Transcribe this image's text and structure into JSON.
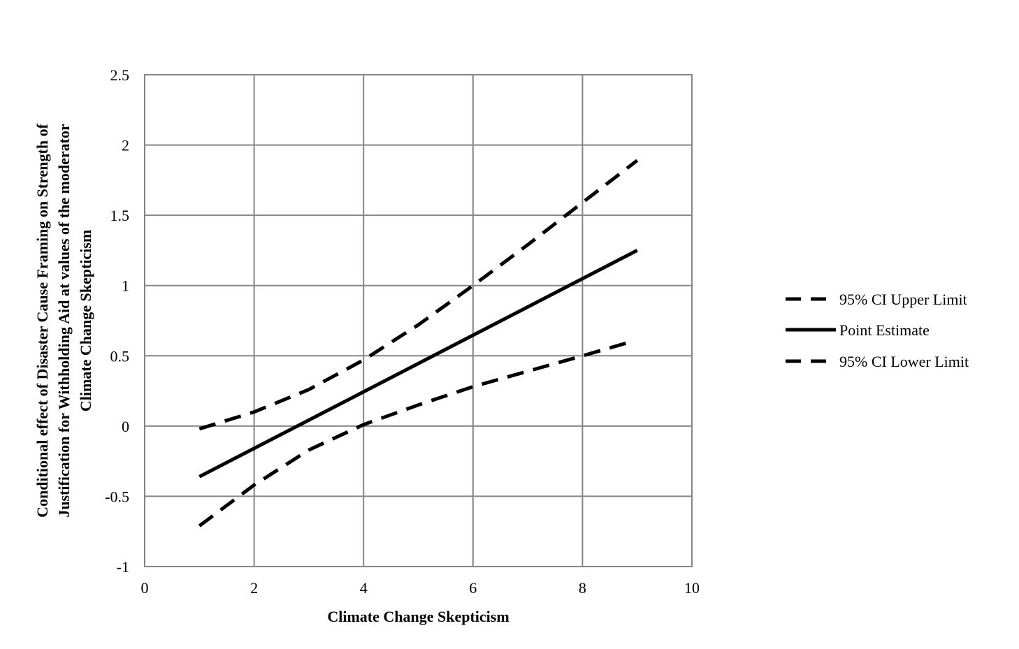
{
  "chart_data": {
    "type": "line",
    "title": "",
    "xlabel": "Climate Change Skepticism",
    "ylabel_lines": [
      "Conditional effect of Disaster Cause Framing on Strength of",
      "Justification for Withholding Aid at values of the moderator",
      "Climate Change Skepticism"
    ],
    "xlim": [
      0,
      10
    ],
    "ylim": [
      -1,
      2.5
    ],
    "x_ticks": [
      "0",
      "2",
      "4",
      "6",
      "8",
      "10"
    ],
    "y_ticks": [
      "-1",
      "-0.5",
      "0",
      "0.5",
      "1",
      "1.5",
      "2",
      "2.5"
    ],
    "grid": true,
    "legend_position": "right",
    "series": [
      {
        "name": "95% CI Upper Limit",
        "style": "dashed",
        "color": "#000000",
        "x": [
          1,
          2,
          3,
          4,
          5,
          6,
          7,
          8,
          9
        ],
        "y": [
          -0.02,
          0.1,
          0.26,
          0.47,
          0.72,
          1.0,
          1.29,
          1.59,
          1.89
        ]
      },
      {
        "name": "Point Estimate",
        "style": "solid",
        "color": "#000000",
        "x": [
          1,
          9
        ],
        "y": [
          -0.36,
          1.25
        ]
      },
      {
        "name": "95% CI Lower Limit",
        "style": "dashed",
        "color": "#000000",
        "x": [
          1,
          2,
          3,
          4,
          5,
          6,
          7,
          8,
          8.8
        ],
        "y": [
          -0.71,
          -0.42,
          -0.17,
          0.01,
          0.15,
          0.28,
          0.39,
          0.5,
          0.59
        ]
      }
    ]
  }
}
